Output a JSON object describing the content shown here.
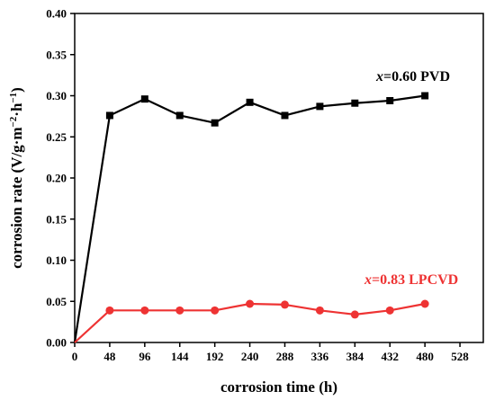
{
  "chart_data": {
    "type": "line",
    "xlabel": "corrosion time (h)",
    "ylabel_main": "corrosion rate (V/g·m",
    "ylabel_sup1": "−2",
    "ylabel_mid": "·h",
    "ylabel_sup2": "−1",
    "ylabel_end": ")",
    "xlim": [
      0,
      560
    ],
    "ylim": [
      0,
      0.4
    ],
    "x_ticks": [
      0,
      48,
      96,
      144,
      192,
      240,
      288,
      336,
      384,
      432,
      480,
      528
    ],
    "x_tick_labels": [
      "0",
      "48",
      "96",
      "144",
      "192",
      "240",
      "288",
      "336",
      "384",
      "432",
      "480",
      "528"
    ],
    "y_ticks": [
      0,
      0.05,
      0.1,
      0.15,
      0.2,
      0.25,
      0.3,
      0.35,
      0.4
    ],
    "y_tick_labels": [
      "0.00",
      "0.05",
      "0.10",
      "0.15",
      "0.20",
      "0.25",
      "0.30",
      "0.35",
      "0.40"
    ],
    "grid": false,
    "series": [
      {
        "label_var": "x",
        "label_rest": "=0.60 PVD",
        "color": "#000000",
        "marker": "square",
        "x": [
          0,
          48,
          96,
          144,
          192,
          240,
          288,
          336,
          384,
          432,
          480
        ],
        "y": [
          0,
          0.276,
          0.296,
          0.276,
          0.267,
          0.292,
          0.276,
          0.287,
          0.291,
          0.294,
          0.3
        ]
      },
      {
        "label_var": "x",
        "label_rest": "=0.83 LPCVD",
        "color": "#ee3333",
        "marker": "circle",
        "x": [
          0,
          48,
          96,
          144,
          192,
          240,
          288,
          336,
          384,
          432,
          480
        ],
        "y": [
          0,
          0.039,
          0.039,
          0.039,
          0.039,
          0.047,
          0.046,
          0.039,
          0.034,
          0.039,
          0.047
        ]
      }
    ]
  }
}
